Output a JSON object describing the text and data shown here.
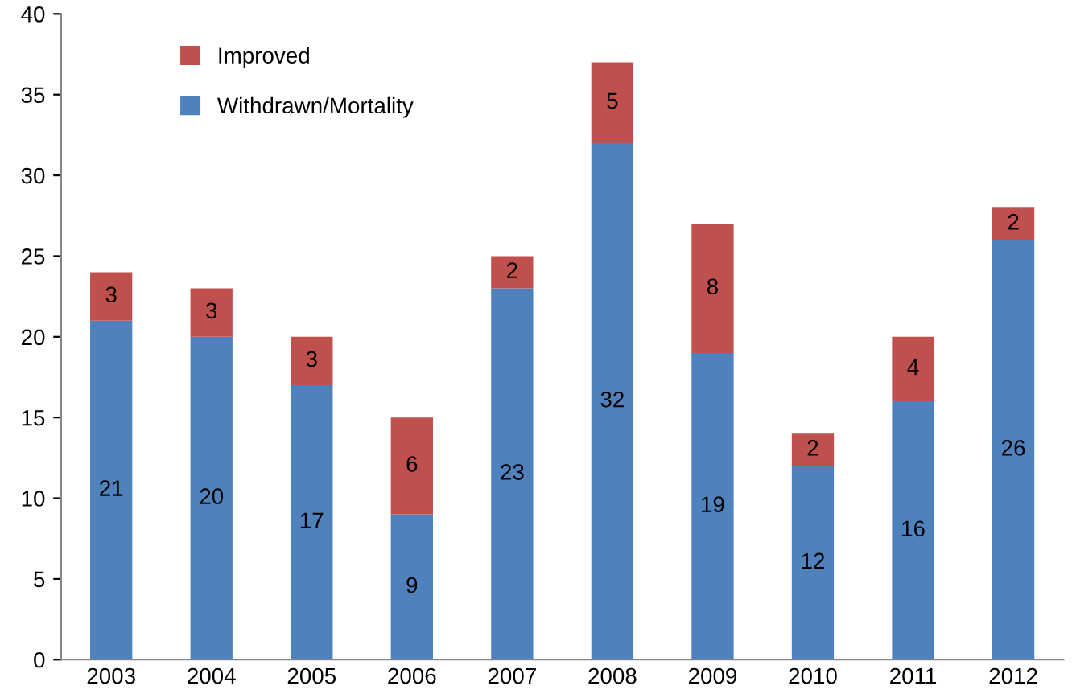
{
  "chart_data": {
    "type": "bar",
    "stacked": true,
    "categories": [
      "2003",
      "2004",
      "2005",
      "2006",
      "2007",
      "2008",
      "2009",
      "2010",
      "2011",
      "2012"
    ],
    "series": [
      {
        "name": "Withdrawn/Mortality",
        "color": "#4f81bd",
        "values": [
          21,
          20,
          17,
          9,
          23,
          32,
          19,
          12,
          16,
          26
        ]
      },
      {
        "name": "Improved",
        "color": "#c0504d",
        "values": [
          3,
          3,
          3,
          6,
          2,
          5,
          8,
          2,
          4,
          2
        ]
      }
    ],
    "ylim": [
      0,
      40
    ],
    "yticks": [
      0,
      5,
      10,
      15,
      20,
      25,
      30,
      35,
      40
    ],
    "data_labels": true,
    "legend": "top left",
    "grid": false
  }
}
